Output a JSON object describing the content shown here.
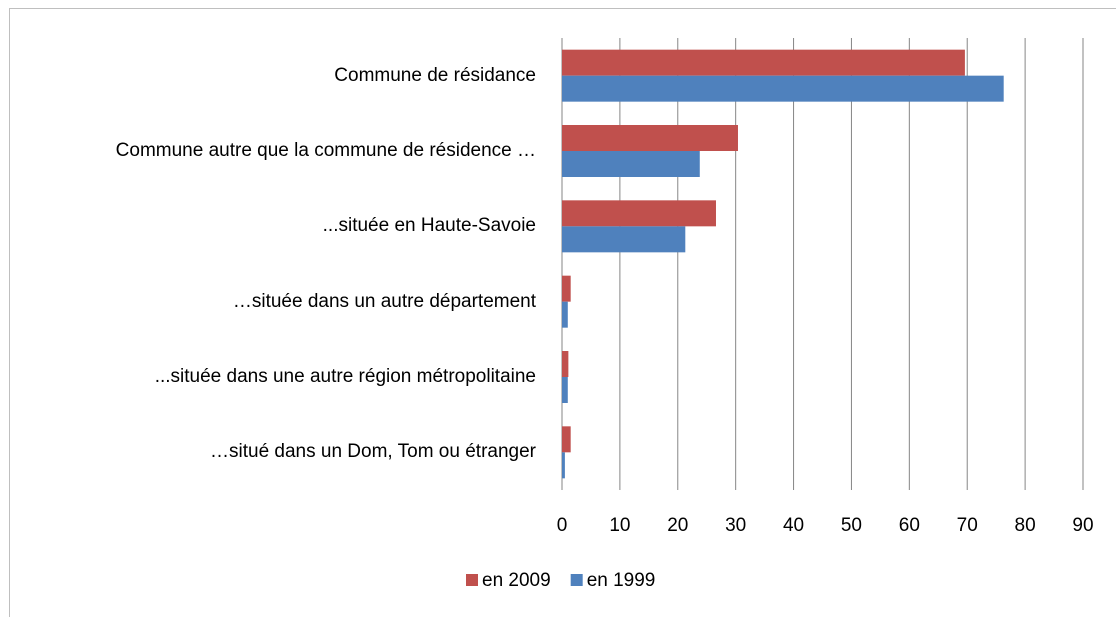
{
  "chart_data": {
    "type": "bar",
    "orientation": "horizontal",
    "categories": [
      "Commune de résidance",
      "Commune autre que la commune de résidence …",
      "...située en Haute-Savoie",
      "…située dans un autre département",
      "...située dans une autre région métropolitaine",
      "…situé dans un Dom, Tom ou étranger"
    ],
    "series": [
      {
        "name": "en 2009",
        "color": "#c0504d",
        "values": [
          69.6,
          30.4,
          26.6,
          1.5,
          1.1,
          1.5
        ]
      },
      {
        "name": "en 1999",
        "color": "#4f81bd",
        "values": [
          76.3,
          23.8,
          21.3,
          1.0,
          1.0,
          0.5
        ]
      }
    ],
    "xlim": [
      0,
      90
    ],
    "xticks": [
      0,
      10,
      20,
      30,
      40,
      50,
      60,
      70,
      80,
      90
    ],
    "grid": true,
    "legend": "bottom"
  }
}
